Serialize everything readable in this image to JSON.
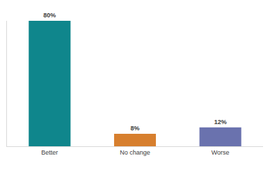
{
  "chart_data": {
    "type": "bar",
    "categories": [
      "Better",
      "No change",
      "Worse"
    ],
    "values": [
      80,
      8,
      12
    ],
    "value_labels": [
      "80%",
      "8%",
      "12%"
    ],
    "colors": [
      "#0f868c",
      "#d77f2e",
      "#6a72ae"
    ],
    "ylim": [
      0,
      80
    ],
    "data_labels": true,
    "tick_labels": "x",
    "grid": false
  }
}
